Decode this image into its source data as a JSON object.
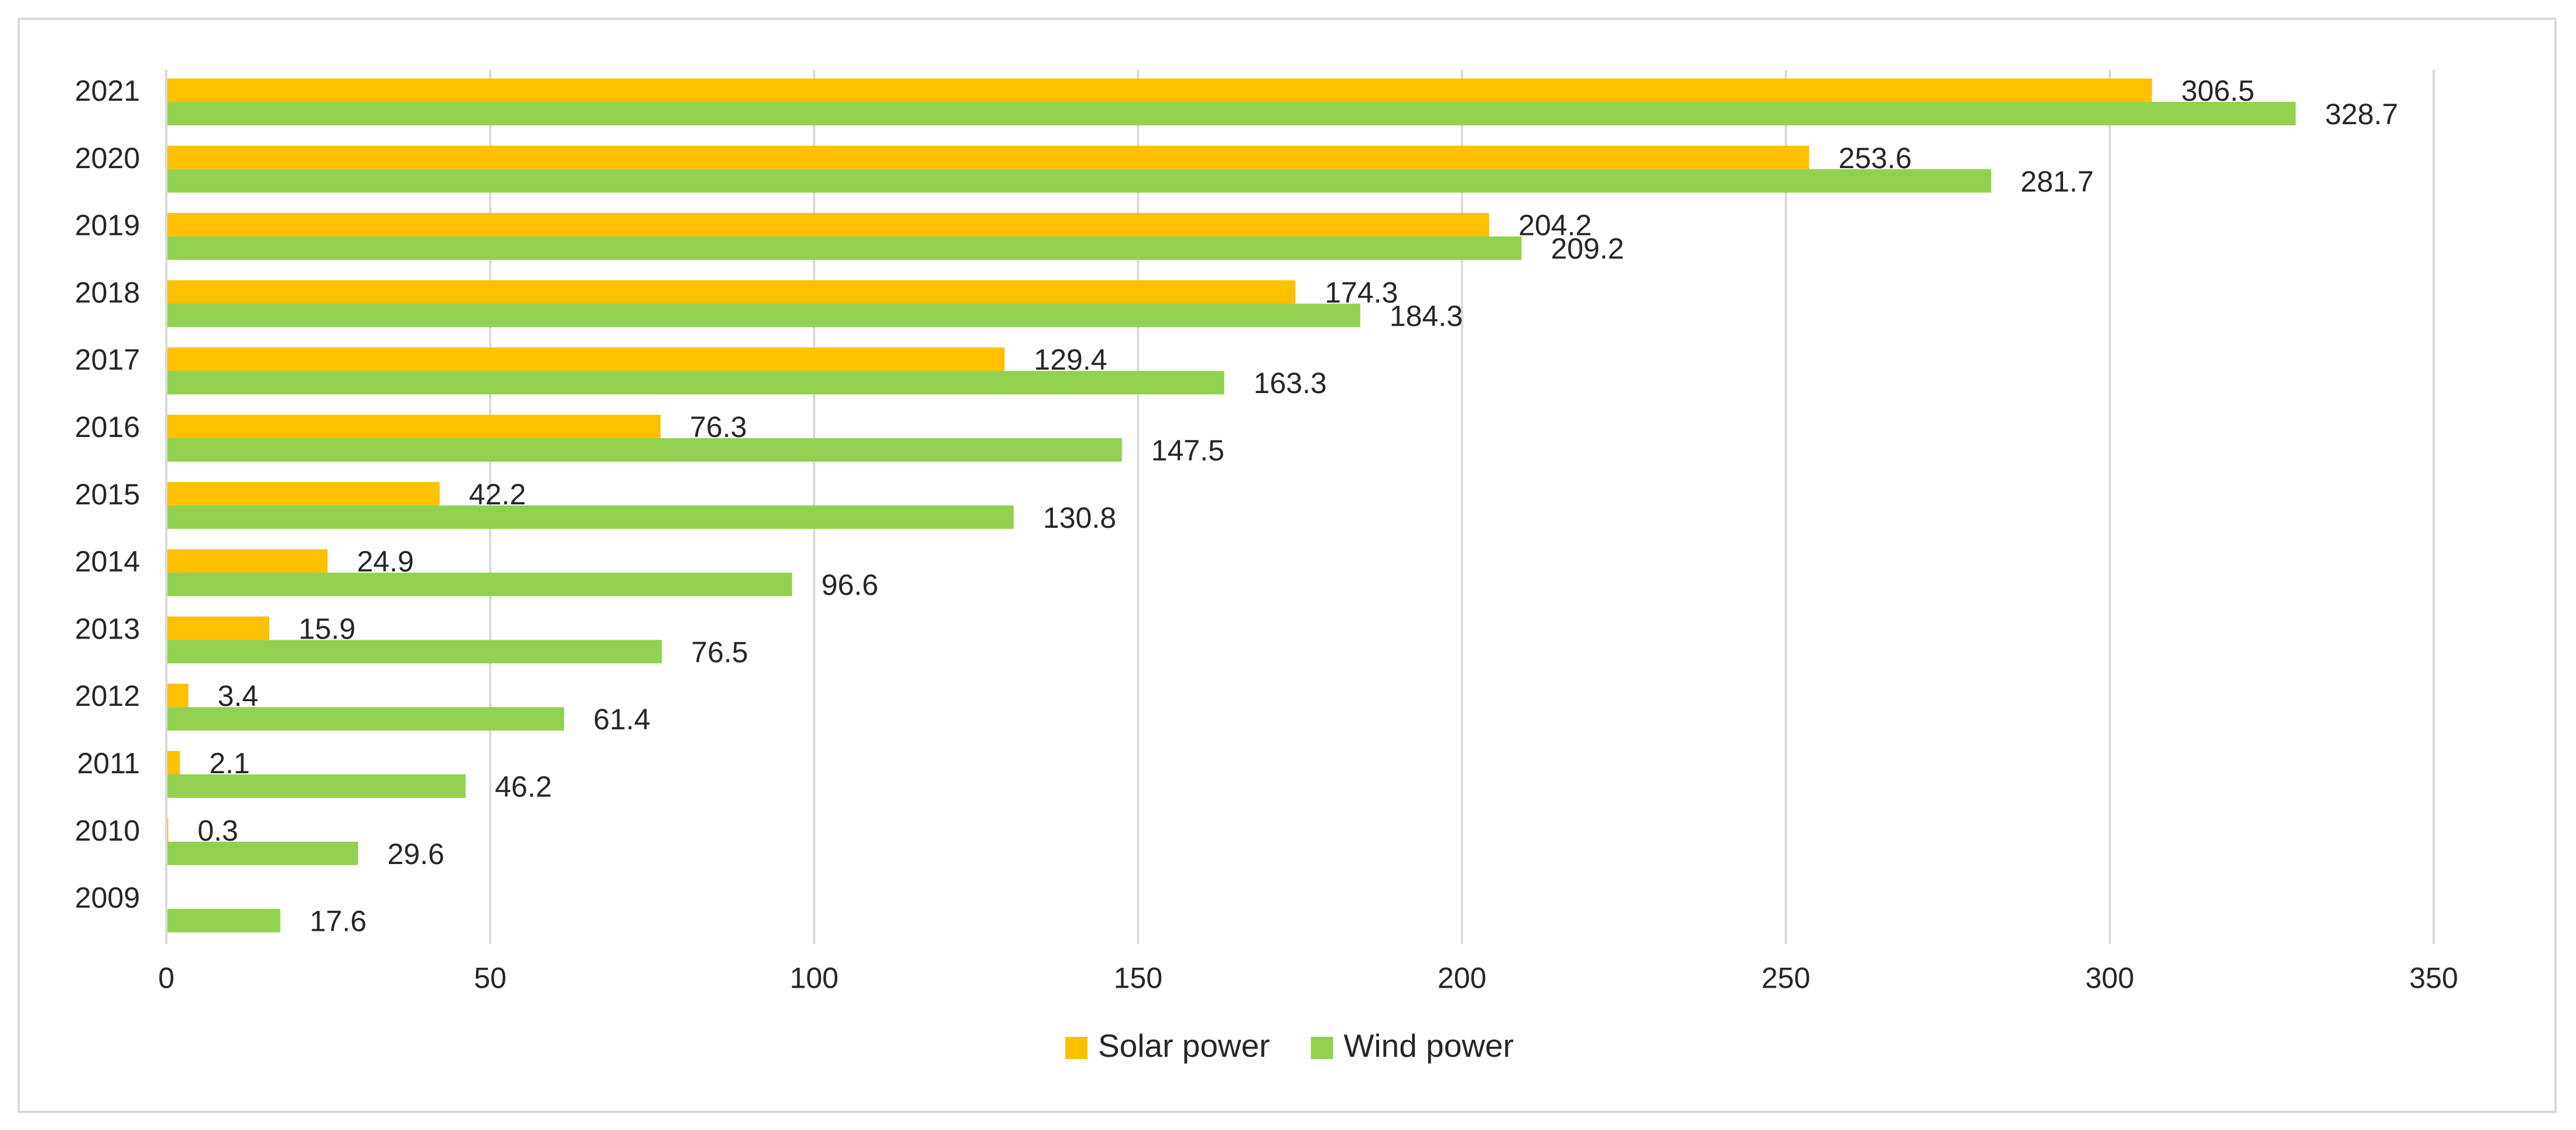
{
  "chart_data": {
    "type": "bar",
    "orientation": "horizontal",
    "title": "",
    "xlabel": "",
    "ylabel": "",
    "categories": [
      "2021",
      "2020",
      "2019",
      "2018",
      "2017",
      "2016",
      "2015",
      "2014",
      "2013",
      "2012",
      "2011",
      "2010",
      "2009"
    ],
    "series": [
      {
        "name": "Solar power",
        "color": "#ffc000",
        "values": [
          306.5,
          253.6,
          204.2,
          174.3,
          129.4,
          76.3,
          42.2,
          24.9,
          15.9,
          3.4,
          2.1,
          0.3,
          null
        ],
        "labels": [
          "306.5",
          "253.6",
          "204.2",
          "174.3",
          "129.4",
          "76.3",
          "42.2",
          "24.9",
          "15.9",
          "3.4",
          "2.1",
          "0.3",
          ""
        ]
      },
      {
        "name": "Wind power",
        "color": "#92d050",
        "values": [
          328.7,
          281.7,
          209.2,
          184.3,
          163.3,
          147.5,
          130.8,
          96.6,
          76.5,
          61.4,
          46.2,
          29.6,
          17.6
        ],
        "labels": [
          "328.7",
          "281.7",
          "209.2",
          "184.3",
          "163.3",
          "147.5",
          "130.8",
          "96.6",
          "76.5",
          "61.4",
          "46.2",
          "29.6",
          "17.6"
        ]
      }
    ],
    "xlim": [
      0,
      350
    ],
    "xticks": [
      0,
      50,
      100,
      150,
      200,
      250,
      300,
      350
    ],
    "xtick_labels": [
      "0",
      "50",
      "100",
      "150",
      "200",
      "250",
      "300",
      "350"
    ],
    "grid": "vertical",
    "legend": {
      "position": "bottom",
      "entries": [
        "Solar power",
        "Wind power"
      ]
    }
  }
}
